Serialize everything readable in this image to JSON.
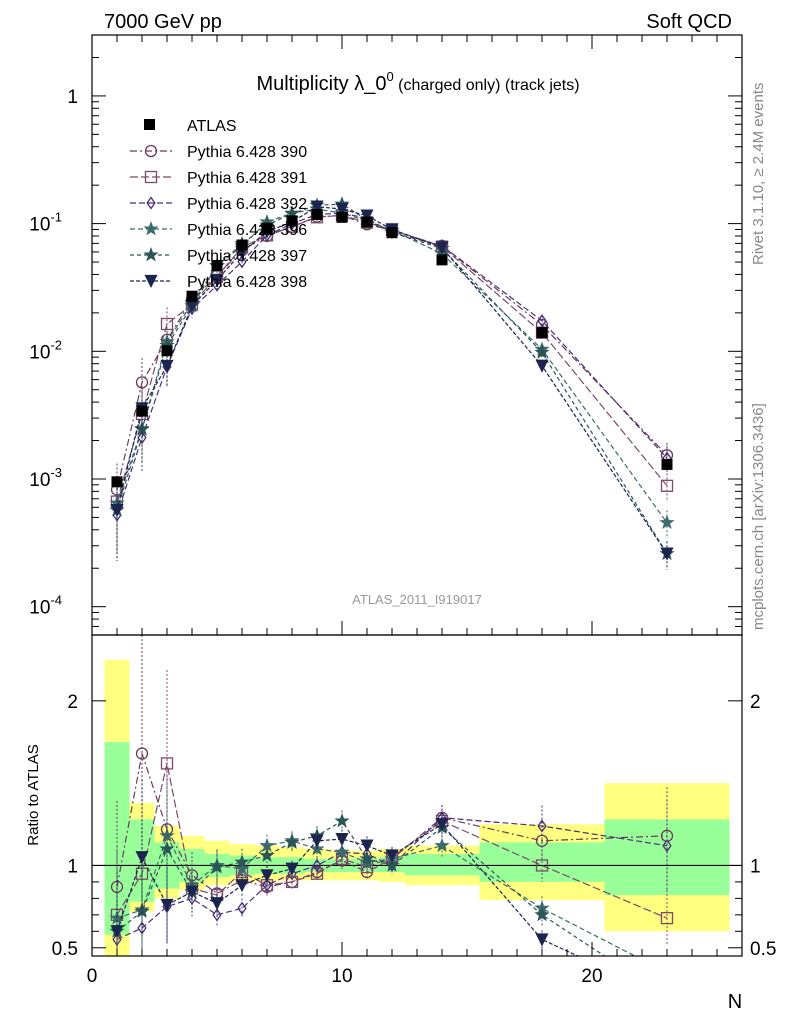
{
  "header": {
    "left": "7000 GeV pp",
    "right": "Soft QCD"
  },
  "side_text": {
    "rivet": "Rivet 3.1.10, ≥ 2.4M events",
    "source": "mcplots.cern.ch [arXiv:1306.3436]"
  },
  "chart_data": {
    "type": "line",
    "title": {
      "main": "Multiplicity λ_0",
      "superscript": "0",
      "suffix": " (charged only) (track jets)"
    },
    "analysis_label": "ATLAS_2011_I919017",
    "xlabel": "N",
    "ratio_ylabel": "Ratio to ATLAS",
    "xlim": [
      0,
      26
    ],
    "ylim_main": [
      6e-05,
      3
    ],
    "ylim_ratio": [
      0.45,
      2.4
    ],
    "yscale_main": "log",
    "x_ticks": [
      "0",
      "10",
      "20"
    ],
    "main_y_ticks": [
      "10",
      "10",
      "10",
      "10",
      "1"
    ],
    "main_y_tick_exponents": [
      "-4",
      "-3",
      "-2",
      "-1",
      ""
    ],
    "ratio_y_ticks": [
      "0.5",
      "1",
      "2"
    ],
    "legend_position": "top-left",
    "reference": {
      "name": "ATLAS",
      "x": [
        1,
        2,
        3,
        4,
        5,
        6,
        7,
        8,
        9,
        10,
        11,
        12,
        14,
        18,
        23
      ],
      "y": [
        0.00095,
        0.0034,
        0.0101,
        0.027,
        0.047,
        0.068,
        0.092,
        0.105,
        0.118,
        0.112,
        0.103,
        0.085,
        0.052,
        0.014,
        0.0013
      ],
      "ratio_bands": [
        {
          "x0": 0.5,
          "x1": 1.5,
          "inner": [
            0.58,
            1.75
          ],
          "outer": [
            0.3,
            2.25
          ]
        },
        {
          "x0": 1.5,
          "x1": 2.5,
          "inner": [
            0.78,
            1.28
          ],
          "outer": [
            0.72,
            1.38
          ]
        },
        {
          "x0": 2.5,
          "x1": 3.5,
          "inner": [
            0.86,
            1.14
          ],
          "outer": [
            0.8,
            1.24
          ]
        },
        {
          "x0": 3.5,
          "x1": 4.5,
          "inner": [
            0.9,
            1.1
          ],
          "outer": [
            0.85,
            1.18
          ]
        },
        {
          "x0": 4.5,
          "x1": 5.5,
          "inner": [
            0.93,
            1.07
          ],
          "outer": [
            0.88,
            1.15
          ]
        },
        {
          "x0": 5.5,
          "x1": 6.5,
          "inner": [
            0.94,
            1.06
          ],
          "outer": [
            0.9,
            1.13
          ]
        },
        {
          "x0": 6.5,
          "x1": 7.5,
          "inner": [
            0.95,
            1.05
          ],
          "outer": [
            0.9,
            1.12
          ]
        },
        {
          "x0": 7.5,
          "x1": 8.5,
          "inner": [
            0.95,
            1.05
          ],
          "outer": [
            0.91,
            1.11
          ]
        },
        {
          "x0": 8.5,
          "x1": 9.5,
          "inner": [
            0.96,
            1.04
          ],
          "outer": [
            0.91,
            1.1
          ]
        },
        {
          "x0": 9.5,
          "x1": 10.5,
          "inner": [
            0.96,
            1.04
          ],
          "outer": [
            0.91,
            1.09
          ]
        },
        {
          "x0": 10.5,
          "x1": 11.5,
          "inner": [
            0.96,
            1.04
          ],
          "outer": [
            0.91,
            1.09
          ]
        },
        {
          "x0": 11.5,
          "x1": 12.5,
          "inner": [
            0.96,
            1.05
          ],
          "outer": [
            0.9,
            1.1
          ]
        },
        {
          "x0": 12.5,
          "x1": 15.5,
          "inner": [
            0.94,
            1.07
          ],
          "outer": [
            0.88,
            1.12
          ]
        },
        {
          "x0": 15.5,
          "x1": 20.5,
          "inner": [
            0.9,
            1.14
          ],
          "outer": [
            0.79,
            1.25
          ]
        },
        {
          "x0": 20.5,
          "x1": 25.5,
          "inner": [
            0.82,
            1.28
          ],
          "outer": [
            0.6,
            1.5
          ]
        }
      ]
    },
    "series": [
      {
        "name": "Pythia 6.428 390",
        "color": "#6b3a5a",
        "marker": "circle",
        "dash": "7,3,2,3",
        "ratio": [
          0.87,
          1.68,
          1.22,
          0.94,
          0.83,
          0.91,
          0.87,
          0.9,
          0.96,
          1.03,
          0.96,
          1.04,
          1.29,
          1.15,
          1.18
        ],
        "err": [
          0.6,
          0.55,
          0.35,
          0.15,
          0.1,
          0.08,
          0.06,
          0.05,
          0.05,
          0.05,
          0.05,
          0.05,
          0.06,
          0.1,
          0.25
        ]
      },
      {
        "name": "Pythia 6.428 391",
        "color": "#7a4a68",
        "marker": "square",
        "dash": "8,3",
        "ratio": [
          0.7,
          0.95,
          1.62,
          0.86,
          0.82,
          0.96,
          0.88,
          0.9,
          0.95,
          1.04,
          0.99,
          1.05,
          1.27,
          1.0,
          0.68
        ],
        "err": [
          0.6,
          0.5,
          0.35,
          0.15,
          0.1,
          0.08,
          0.06,
          0.05,
          0.05,
          0.05,
          0.05,
          0.05,
          0.06,
          0.1,
          0.25
        ]
      },
      {
        "name": "Pythia 6.428 392",
        "color": "#4a2f7a",
        "marker": "diamond",
        "dash": "6,3",
        "ratio": [
          0.55,
          0.62,
          0.75,
          0.8,
          0.7,
          0.74,
          0.88,
          0.95,
          1.0,
          1.08,
          1.07,
          1.0,
          1.29,
          1.24,
          1.12
        ],
        "err": [
          0.5,
          0.45,
          0.3,
          0.15,
          0.1,
          0.08,
          0.06,
          0.05,
          0.05,
          0.05,
          0.05,
          0.05,
          0.06,
          0.1,
          0.25
        ]
      },
      {
        "name": "Pythia 6.428 396",
        "color": "#3d6a6a",
        "marker": "star",
        "dash": "5,3",
        "ratio": [
          0.68,
          0.73,
          1.18,
          0.88,
          1.0,
          0.98,
          1.12,
          1.15,
          1.1,
          1.08,
          1.02,
          1.04,
          1.12,
          0.74,
          0.35
        ],
        "err": [
          0.6,
          0.45,
          0.3,
          0.15,
          0.1,
          0.08,
          0.06,
          0.05,
          0.05,
          0.05,
          0.05,
          0.05,
          0.06,
          0.1,
          0.25
        ]
      },
      {
        "name": "Pythia 6.428 397",
        "color": "#2c5656",
        "marker": "star",
        "dash": "4,3",
        "ratio": [
          0.6,
          0.72,
          1.1,
          0.84,
          0.99,
          1.02,
          1.06,
          1.14,
          1.18,
          1.27,
          1.04,
          1.0,
          1.23,
          0.7,
          0.2
        ],
        "err": [
          0.6,
          0.45,
          0.3,
          0.15,
          0.1,
          0.08,
          0.06,
          0.05,
          0.05,
          0.05,
          0.05,
          0.05,
          0.06,
          0.1,
          0.25
        ]
      },
      {
        "name": "Pythia 6.428 398",
        "color": "#1c2450",
        "marker": "triangle-down",
        "dash": "4,2",
        "ratio": [
          0.6,
          1.05,
          0.76,
          0.84,
          0.77,
          0.88,
          0.94,
          0.98,
          1.15,
          1.16,
          1.12,
          1.06,
          1.25,
          0.55,
          0.2
        ],
        "err": [
          0.6,
          0.45,
          0.3,
          0.15,
          0.1,
          0.08,
          0.06,
          0.05,
          0.05,
          0.05,
          0.05,
          0.05,
          0.06,
          0.1,
          0.25
        ]
      }
    ]
  }
}
